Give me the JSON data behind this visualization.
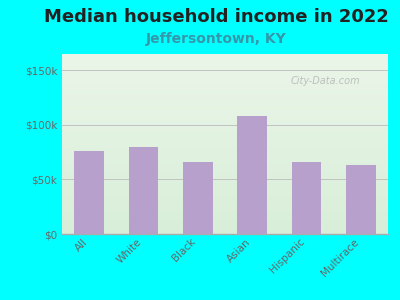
{
  "title": "Median household income in 2022",
  "subtitle": "Jeffersontown, KY",
  "categories": [
    "All",
    "White",
    "Black",
    "Asian",
    "Hispanic",
    "Multirace"
  ],
  "values": [
    76000,
    80000,
    66000,
    108000,
    66000,
    63000
  ],
  "bar_color": "#b8a0cc",
  "background_outer": "#00FFFF",
  "background_inner_top": "#eaf5e8",
  "background_inner_bottom": "#d8eed8",
  "yticks": [
    0,
    50000,
    100000,
    150000
  ],
  "ytick_labels": [
    "$0",
    "$50k",
    "$100k",
    "$150k"
  ],
  "ylim": [
    0,
    165000
  ],
  "title_fontsize": 13,
  "subtitle_fontsize": 10,
  "tick_color": "#666666",
  "axis_color": "#aaaaaa",
  "watermark": "City-Data.com"
}
